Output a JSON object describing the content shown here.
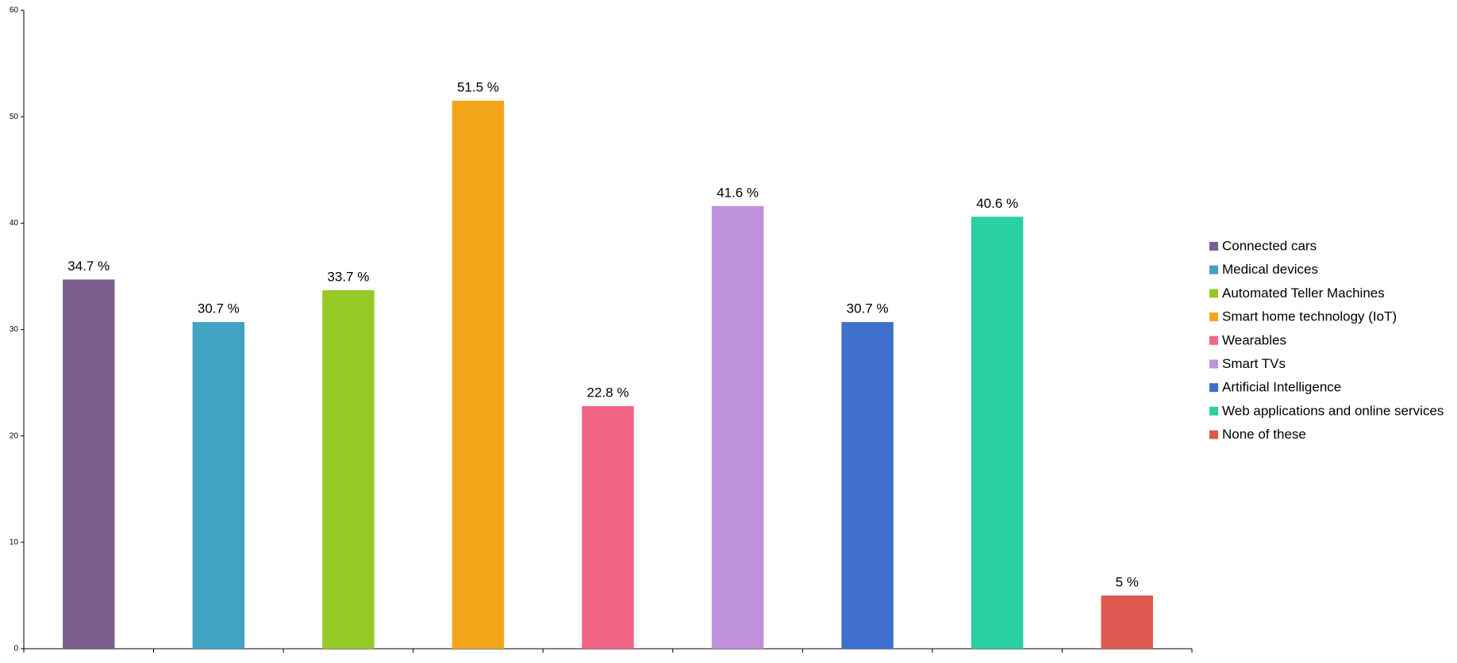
{
  "chart_data": {
    "type": "bar",
    "categories": [
      "Connected cars",
      "Medical devices",
      "Automated Teller Machines",
      "Smart home technology (IoT)",
      "Wearables",
      "Smart TVs",
      "Artificial Intelligence",
      "Web applications and online services",
      "None of these"
    ],
    "values": [
      34.7,
      30.7,
      33.7,
      51.5,
      22.8,
      41.6,
      30.7,
      40.6,
      5
    ],
    "value_labels": [
      "34.7 %",
      "30.7 %",
      "33.7 %",
      "51.5 %",
      "22.8 %",
      "41.6 %",
      "30.7 %",
      "40.6 %",
      "5 %"
    ],
    "colors": [
      "#7b5f8e",
      "#40a3c2",
      "#97c926",
      "#f3a51a",
      "#f06586",
      "#bf90db",
      "#3e6fcc",
      "#2acfa2",
      "#de5a50"
    ],
    "ylim": [
      0,
      60
    ],
    "yticks": [
      0,
      10,
      20,
      30,
      40,
      50,
      60
    ],
    "grid": false,
    "legend": "right"
  }
}
